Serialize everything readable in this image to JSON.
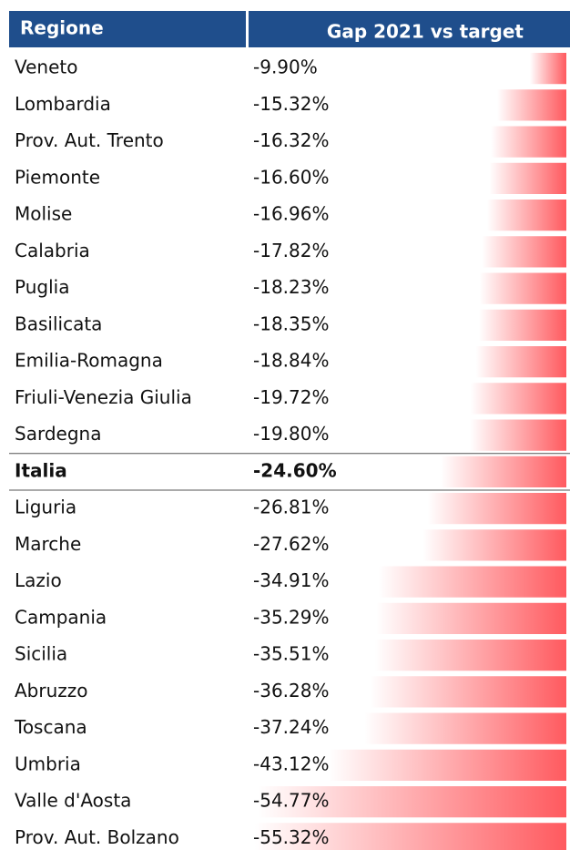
{
  "chart_data": {
    "type": "bar",
    "column_headers": [
      "Regione",
      "Gap 2021 vs target"
    ],
    "categories": [
      "Veneto",
      "Lombardia",
      "Prov. Aut. Trento",
      "Piemonte",
      "Molise",
      "Calabria",
      "Puglia",
      "Basilicata",
      "Emilia-Romagna",
      "Friuli-Venezia Giulia",
      "Sardegna",
      "Italia",
      "Liguria",
      "Marche",
      "Lazio",
      "Campania",
      "Sicilia",
      "Abruzzo",
      "Toscana",
      "Umbria",
      "Valle d'Aosta",
      "Prov. Aut. Bolzano"
    ],
    "values": [
      -9.9,
      -15.32,
      -16.32,
      -16.6,
      -16.96,
      -17.82,
      -18.23,
      -18.35,
      -18.84,
      -19.72,
      -19.8,
      -24.6,
      -26.81,
      -27.62,
      -34.91,
      -35.29,
      -35.51,
      -36.28,
      -37.24,
      -43.12,
      -54.77,
      -55.32
    ],
    "value_labels": [
      "-9.90%",
      "-15.32%",
      "-16.32%",
      "-16.60%",
      "-16.96%",
      "-17.82%",
      "-18.23%",
      "-18.35%",
      "-18.84%",
      "-19.72%",
      "-19.80%",
      "-24.60%",
      "-26.81%",
      "-27.62%",
      "-34.91%",
      "-35.29%",
      "-35.51%",
      "-36.28%",
      "-37.24%",
      "-43.12%",
      "-54.77%",
      "-55.32%"
    ],
    "color": "#ff5a5f",
    "highlight_index": 11
  }
}
